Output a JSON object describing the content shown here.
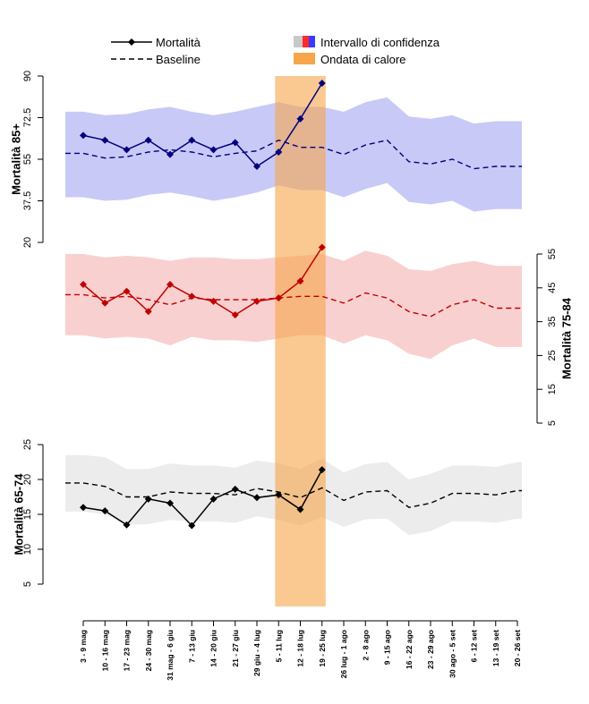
{
  "chart_data": {
    "type": "line",
    "categories": [
      "3 - 9 mag",
      "10 - 16 mag",
      "17 - 23 mag",
      "24 - 30 mag",
      "31 mag - 6 giu",
      "7 - 13 giu",
      "14 - 20 giu",
      "21 - 27 giu",
      "29 giu - 4 lug",
      "5 - 11 lug",
      "12 - 18 lug",
      "19 - 25 lug",
      "26 lug - 1 ago",
      "2 - 8 ago",
      "9 - 15 ago",
      "16 - 22 ago",
      "23 - 29 ago",
      "30 ago - 5 set",
      "6 - 12 set",
      "13 - 19 set",
      "20 - 26 set"
    ],
    "legend": {
      "mortality": "Mortalità",
      "baseline": "Baseline",
      "ci": "Intervallo di confidenza",
      "heatwave": "Ondata di calore"
    },
    "heatwave_range": [
      "5 - 11 lug",
      "19 - 25 lug"
    ],
    "panels": [
      {
        "id": "p85",
        "ylabel": "Mortalità 85+",
        "axis_side": "left",
        "ylim": [
          20,
          90
        ],
        "ticks": [
          "20",
          "37.5",
          "55",
          "72.5",
          "90"
        ],
        "tick_values": [
          20,
          37.5,
          55,
          72.5,
          90
        ],
        "color": "#000080",
        "ci_color": "#c9c9f7",
        "mortality": [
          65,
          63,
          59,
          63,
          57,
          63,
          59,
          62,
          52,
          58,
          72,
          87,
          null,
          null,
          null,
          null,
          null,
          null,
          null,
          null,
          null
        ],
        "baseline": [
          57.5,
          55.5,
          56,
          58,
          59,
          58,
          56,
          57.5,
          58.5,
          63,
          60,
          60,
          57,
          61,
          63,
          54,
          53,
          55,
          51,
          52,
          52
        ],
        "ci_upper": [
          75,
          73.5,
          74,
          76,
          77,
          75,
          73.5,
          75,
          77,
          79,
          77,
          77,
          75,
          79,
          81,
          73,
          72,
          73.5,
          70,
          71,
          71
        ],
        "ci_lower": [
          39,
          37.5,
          38,
          40,
          41,
          39.5,
          37.5,
          39,
          41,
          44,
          42,
          42,
          39,
          42.5,
          45,
          37,
          36,
          37.5,
          33,
          34,
          34
        ]
      },
      {
        "id": "p75",
        "ylabel": "Mortalità 75-84",
        "axis_side": "right",
        "ylim": [
          5,
          55
        ],
        "ticks": [
          "5",
          "15",
          "25",
          "35",
          "45",
          "55"
        ],
        "tick_values": [
          5,
          15,
          25,
          35,
          45,
          55
        ],
        "color": "#c00000",
        "ci_color": "#f9d0d0",
        "mortality": [
          46,
          40.5,
          44,
          38,
          46,
          42.5,
          41,
          37,
          41,
          42,
          47,
          57,
          null,
          null,
          null,
          null,
          null,
          null,
          null,
          null,
          null
        ],
        "baseline": [
          43,
          42,
          42.5,
          41.5,
          40,
          42,
          41.5,
          41.5,
          41.5,
          42,
          42.5,
          42.5,
          40.5,
          43.5,
          42,
          38,
          36.5,
          40,
          41.5,
          39,
          39
        ],
        "ci_upper": [
          55,
          54,
          54.5,
          54,
          53,
          54,
          54,
          53.5,
          53.5,
          54,
          54.5,
          55,
          53,
          56,
          54.5,
          50.5,
          50,
          52,
          53,
          51.5,
          51.5
        ],
        "ci_lower": [
          31,
          30,
          30.5,
          30,
          28,
          30.5,
          29.5,
          29.5,
          29,
          30,
          31,
          31,
          28.5,
          31,
          29.5,
          25.5,
          24,
          28,
          30,
          27.5,
          27.5
        ]
      },
      {
        "id": "p65",
        "ylabel": "Mortalità 65-74",
        "axis_side": "left",
        "ylim": [
          5,
          25
        ],
        "ticks": [
          "5",
          "10",
          "15",
          "20",
          "25"
        ],
        "tick_values": [
          5,
          10,
          15,
          20,
          25
        ],
        "color": "#000000",
        "ci_color": "#ececec",
        "mortality": [
          16,
          15.5,
          13.5,
          17.2,
          16.6,
          13.4,
          17.2,
          18.6,
          17.4,
          17.8,
          15.7,
          21.4,
          null,
          null,
          null,
          null,
          null,
          null,
          null,
          null,
          null
        ],
        "baseline": [
          19.5,
          19,
          17.5,
          17.5,
          18.2,
          18,
          18,
          17.8,
          18.7,
          18.2,
          17.4,
          18.8,
          17,
          18.2,
          18.4,
          16,
          16.6,
          18,
          18,
          17.8,
          18.4
        ],
        "ci_upper": [
          23.5,
          23.2,
          21.5,
          21.5,
          22.3,
          22,
          22,
          21.7,
          22.7,
          22.3,
          21.5,
          23,
          21,
          22.2,
          22.5,
          20,
          20.8,
          22,
          22,
          21.8,
          22.5
        ],
        "ci_lower": [
          15.4,
          15,
          13.5,
          13.6,
          14.2,
          14,
          14,
          13.8,
          14.7,
          14.2,
          13.4,
          14.6,
          13.2,
          14.3,
          14.4,
          12,
          12.6,
          14,
          14,
          13.8,
          14.4
        ]
      }
    ]
  }
}
